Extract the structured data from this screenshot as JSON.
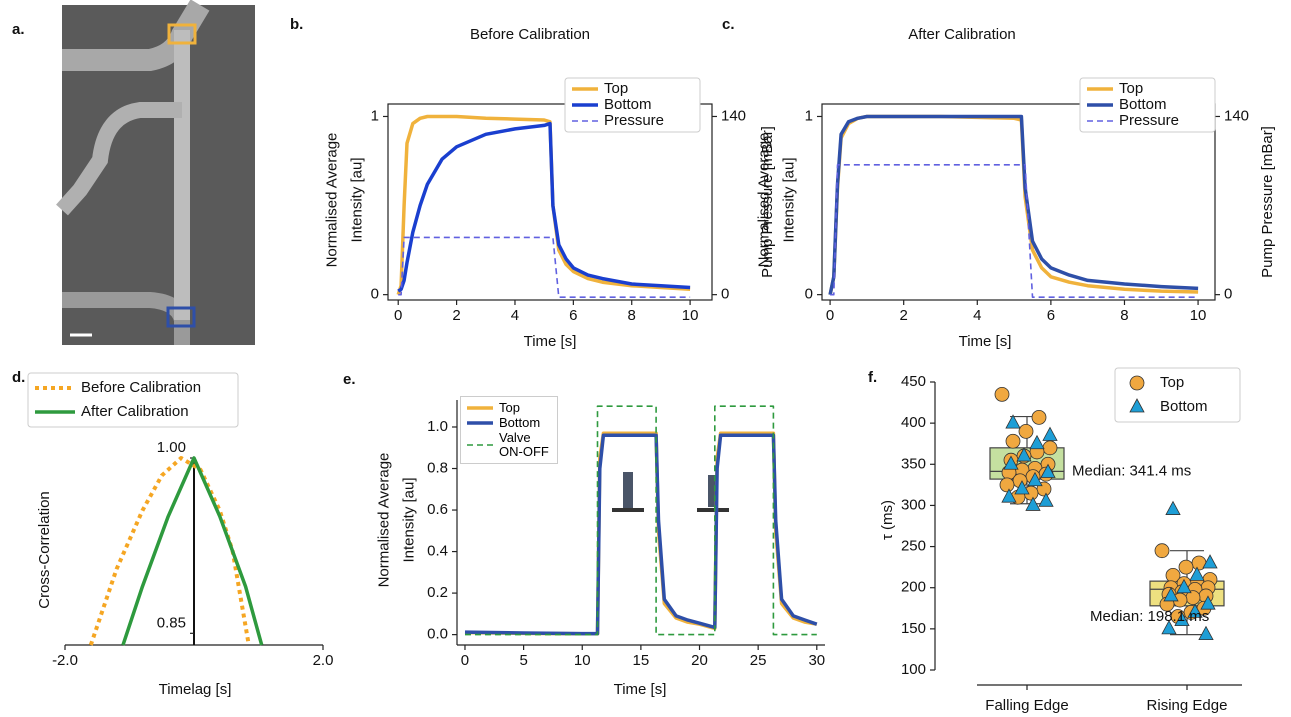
{
  "chart_data": [
    {
      "type": "image",
      "panel": "a."
    },
    {
      "type": "line",
      "panel": "b.",
      "title": "Before Calibration",
      "xlabel": "Time [s]",
      "ylabel": [
        "Normalised Average",
        "Intensity [au]"
      ],
      "y2label": "Pump Pressure [mBar]",
      "x": [
        0,
        0.1,
        0.2,
        0.3,
        0.5,
        0.75,
        1,
        1.5,
        2,
        3,
        4,
        5,
        5.2,
        5.3,
        5.5,
        5.75,
        6,
        6.5,
        7,
        8,
        9,
        10
      ],
      "series": [
        {
          "name": "Top",
          "color": "#f0b23c",
          "style": "solid",
          "values": [
            0.0,
            0.05,
            0.5,
            0.85,
            0.96,
            0.99,
            1.0,
            1.0,
            1.0,
            0.99,
            0.985,
            0.98,
            0.97,
            0.5,
            0.25,
            0.17,
            0.13,
            0.09,
            0.07,
            0.05,
            0.04,
            0.03
          ]
        },
        {
          "name": "Bottom",
          "color": "#1a3fcf",
          "style": "solid",
          "values": [
            0.02,
            0.03,
            0.08,
            0.18,
            0.35,
            0.5,
            0.62,
            0.76,
            0.83,
            0.9,
            0.93,
            0.95,
            0.96,
            0.5,
            0.28,
            0.2,
            0.15,
            0.11,
            0.09,
            0.06,
            0.05,
            0.04
          ]
        },
        {
          "name": "Pressure",
          "color": "#6060e0",
          "style": "dashed",
          "axis": "y2",
          "values": [
            0,
            0,
            45,
            45,
            45,
            45,
            45,
            45,
            45,
            45,
            45,
            45,
            45,
            45,
            -2,
            -2,
            -2,
            -2,
            -2,
            -2,
            -2,
            -2
          ]
        }
      ],
      "xlim": [
        -0.35,
        10.75
      ],
      "xticks": [
        0,
        2,
        4,
        6,
        8,
        10
      ],
      "ylim": [
        -0.03,
        1.07
      ],
      "yticks": [
        0,
        1
      ],
      "y2lim": [
        -4.2,
        149.8
      ],
      "y2ticks": [
        0,
        140
      ],
      "legend": "upper right"
    },
    {
      "type": "line",
      "panel": "c.",
      "title": "After Calibration",
      "xlabel": "Time [s]",
      "ylabel": [
        "Normalised Average",
        "Intensity [au]"
      ],
      "y2label": "Pump Pressure [mBar]",
      "x": [
        0,
        0.1,
        0.2,
        0.3,
        0.5,
        0.75,
        1,
        1.5,
        2,
        3,
        4,
        5,
        5.2,
        5.3,
        5.5,
        5.75,
        6,
        6.5,
        7,
        8,
        9,
        10
      ],
      "series": [
        {
          "name": "Top",
          "color": "#f0b23c",
          "style": "solid",
          "values": [
            0.0,
            0.1,
            0.6,
            0.88,
            0.96,
            0.99,
            1.0,
            1.0,
            1.0,
            1.0,
            0.995,
            0.99,
            0.98,
            0.55,
            0.25,
            0.15,
            0.1,
            0.07,
            0.05,
            0.03,
            0.02,
            0.015
          ]
        },
        {
          "name": "Bottom",
          "color": "#2e4fa8",
          "style": "solid",
          "values": [
            0.0,
            0.1,
            0.62,
            0.9,
            0.97,
            0.99,
            1.0,
            1.0,
            1.0,
            1.0,
            1.0,
            1.0,
            1.0,
            0.6,
            0.3,
            0.2,
            0.15,
            0.11,
            0.08,
            0.06,
            0.045,
            0.035
          ]
        },
        {
          "name": "Pressure",
          "color": "#6060e0",
          "style": "dashed",
          "axis": "y2",
          "values": [
            0,
            0,
            102,
            102,
            102,
            102,
            102,
            102,
            102,
            102,
            102,
            102,
            102,
            102,
            -2,
            -2,
            -2,
            -2,
            -2,
            -2,
            -2,
            -2
          ]
        }
      ],
      "xlim": [
        -0.22,
        10.46
      ],
      "xticks": [
        0,
        2,
        4,
        6,
        8,
        10
      ],
      "ylim": [
        -0.03,
        1.07
      ],
      "yticks": [
        0,
        1
      ],
      "y2lim": [
        -4.2,
        149.8
      ],
      "y2ticks": [
        0,
        140
      ],
      "legend": "upper right"
    },
    {
      "type": "line",
      "panel": "d.",
      "xlabel": "Timelag [s]",
      "ylabel": [
        "Cross-Correlation"
      ],
      "series": [
        {
          "name": "Before Calibration",
          "color": "#f5a623",
          "style": "dotted",
          "x": [
            -1.6,
            -1.2,
            -0.8,
            -0.5,
            -0.2,
            0.1,
            0.4,
            0.6,
            0.85
          ],
          "values": [
            0.84,
            0.905,
            0.955,
            0.985,
            1.0,
            0.99,
            0.955,
            0.92,
            0.84
          ]
        },
        {
          "name": "After Calibration",
          "color": "#2e9a3e",
          "style": "solid",
          "x": [
            -1.1,
            -0.8,
            -0.4,
            0,
            0.4,
            0.8,
            1.05
          ],
          "values": [
            0.84,
            0.89,
            0.95,
            1.0,
            0.95,
            0.89,
            0.84
          ]
        }
      ],
      "xlim": [
        -2,
        2
      ],
      "xticks": [
        {
          "value": -2,
          "label": "-2.0"
        },
        {
          "value": 2,
          "label": "2.0"
        }
      ],
      "ylim": [
        0.84,
        1.0
      ],
      "yticks": [
        0.85,
        {
          "value": 1,
          "label": "1.00"
        }
      ],
      "vline": 0,
      "legend": "upper left"
    },
    {
      "type": "line",
      "panel": "e.",
      "xlabel": "Time [s]",
      "ylabel": [
        "Normalised Average",
        "Intensity [au]"
      ],
      "x": [
        0,
        5,
        10,
        11.3,
        11.5,
        11.8,
        16.3,
        16.5,
        17,
        18,
        19,
        20,
        21.3,
        21.5,
        21.8,
        26.3,
        26.5,
        27,
        28,
        29,
        30
      ],
      "series": [
        {
          "name": "Top",
          "color": "#f0b23c",
          "style": "solid",
          "values": [
            0.01,
            0.006,
            0.004,
            0.004,
            0.85,
            0.97,
            0.97,
            0.5,
            0.15,
            0.08,
            0.06,
            0.05,
            0.03,
            0.85,
            0.97,
            0.97,
            0.5,
            0.15,
            0.08,
            0.06,
            0.05
          ]
        },
        {
          "name": "Bottom",
          "color": "#2e4fa8",
          "style": "solid",
          "values": [
            0.012,
            0.008,
            0.005,
            0.005,
            0.8,
            0.96,
            0.96,
            0.55,
            0.17,
            0.09,
            0.07,
            0.055,
            0.035,
            0.8,
            0.96,
            0.96,
            0.55,
            0.17,
            0.09,
            0.07,
            0.05
          ]
        },
        {
          "name": "Valve ON-OFF",
          "color": "#2e9a3e",
          "style": "dashed",
          "x": [
            0,
            11.3,
            11.3,
            16.3,
            16.3,
            21.3,
            21.3,
            26.3,
            26.3,
            30
          ],
          "values": [
            0,
            0,
            1.1,
            1.1,
            0,
            0,
            1.1,
            1.1,
            0,
            0
          ]
        }
      ],
      "xlim": [
        -0.68,
        30.7
      ],
      "xticks": [
        0,
        5,
        10,
        15,
        20,
        25,
        30
      ],
      "ylim": [
        -0.05,
        1.13
      ],
      "yticks": [
        {
          "value": 0,
          "label": "0.0"
        },
        0.2,
        0.4,
        0.6,
        0.8,
        {
          "value": 1,
          "label": "1.0"
        }
      ],
      "legend": "upper left"
    },
    {
      "type": "box",
      "panel": "f.",
      "ylabel": [
        "τ (ms)"
      ],
      "categories": [
        "Falling Edge",
        "Rising Edge"
      ],
      "boxes": [
        {
          "whislo": 302,
          "q1": 332,
          "median": 341.4,
          "q3": 370,
          "whishi": 408,
          "color": "#c5e0a0",
          "label": "Median: 341.4 ms"
        },
        {
          "whislo": 143,
          "q1": 178,
          "median": 198.1,
          "q3": 208,
          "whishi": 245,
          "color": "#eee080",
          "label": "Median: 198.1 ms"
        }
      ],
      "series": [
        {
          "name": "Top",
          "color": "#f0a840",
          "marker": "circle",
          "values": [
            [
              435,
              407,
              390,
              378,
              370,
              365,
              360,
              355,
              350,
              345,
              343,
              340,
              338,
              335,
              330,
              325,
              320,
              315,
              310
            ],
            [
              245,
              230,
              225,
              215,
              210,
              205,
              205,
              200,
              200,
              198,
              195,
              192,
              190,
              188,
              185,
              180,
              175,
              170,
              165
            ]
          ]
        },
        {
          "name": "Bottom",
          "color": "#1e9ed6",
          "marker": "triangle",
          "values": [
            [
              400,
              385,
              375,
              360,
              350,
              340,
              330,
              320,
              310,
              305,
              300
            ],
            [
              295,
              230,
              215,
              200,
              190,
              180,
              170,
              160,
              150,
              143
            ]
          ]
        }
      ],
      "ylim": [
        100,
        450
      ],
      "yticks": [
        100,
        150,
        200,
        250,
        300,
        350,
        400,
        450
      ],
      "legend": "upper right"
    }
  ]
}
